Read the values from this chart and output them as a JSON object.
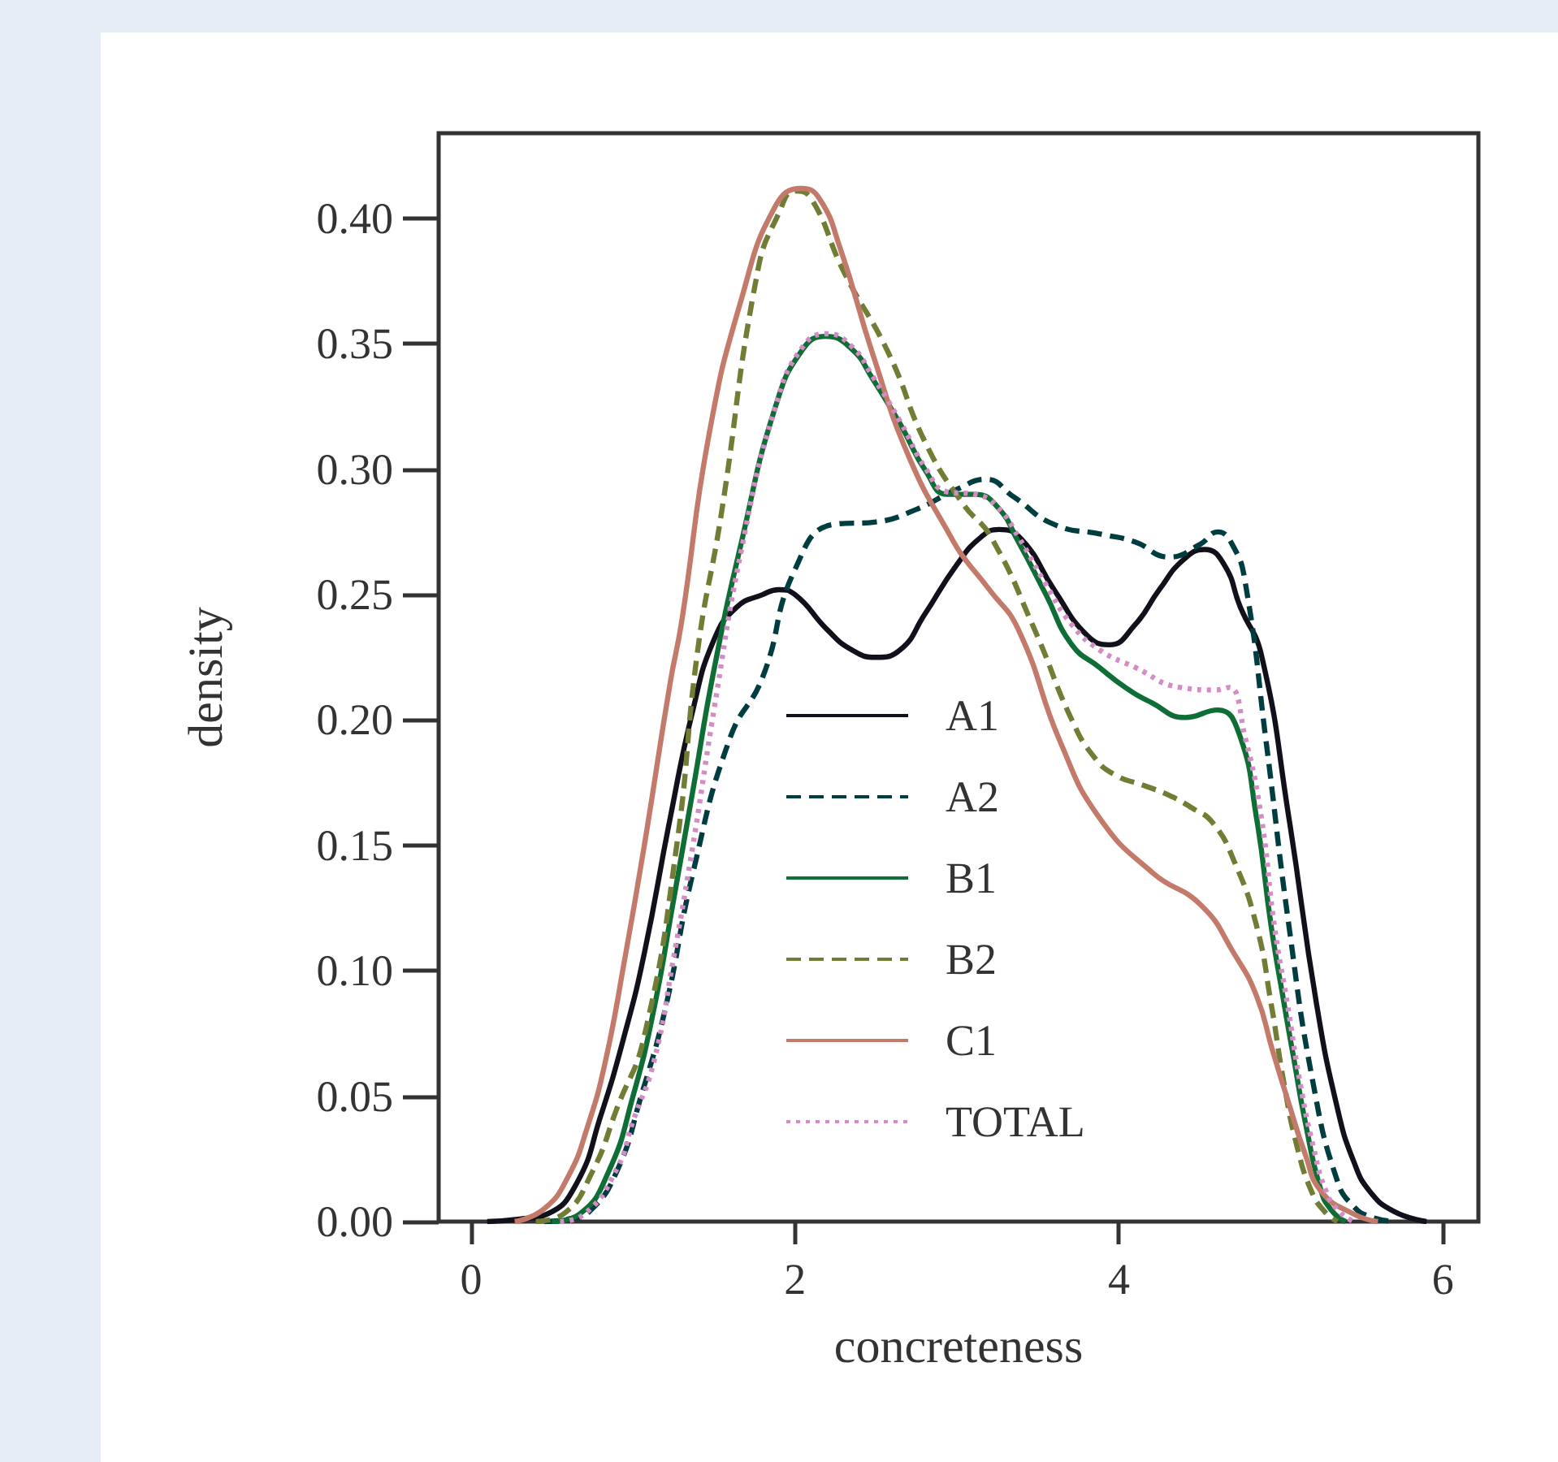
{
  "chart_data": {
    "type": "line",
    "xlabel": "concreteness",
    "ylabel": "density",
    "xlim": [
      -0.2,
      6.22
    ],
    "ylim": [
      0,
      0.434
    ],
    "xticks": [
      0,
      2,
      4,
      6
    ],
    "yticks": [
      {
        "value": 0,
        "label": "0.00"
      },
      {
        "value": 0.05,
        "label": "0.05"
      },
      {
        "value": 0.1,
        "label": "0.10"
      },
      {
        "value": 0.15,
        "label": "0.15"
      },
      {
        "value": 0.2,
        "label": "0.20"
      },
      {
        "value": 0.25,
        "label": "0.25"
      },
      {
        "value": 0.3,
        "label": "0.30"
      },
      {
        "value": 0.35,
        "label": "0.35"
      },
      {
        "value": 0.4,
        "label": "0.40"
      }
    ],
    "grid": false,
    "legend": "bottom",
    "marker": "none",
    "series": [
      {
        "name": "A1",
        "color": "#12101a",
        "line_style": "solid",
        "x": [
          0.1,
          0.3,
          0.47,
          0.65,
          0.8,
          0.95,
          1.07,
          1.23,
          1.37,
          1.5,
          1.64,
          1.8,
          1.9,
          2.0,
          2.2,
          2.35,
          2.5,
          2.65,
          2.8,
          3.0,
          3.15,
          3.26,
          3.4,
          3.6,
          3.8,
          3.94,
          4.1,
          4.25,
          4.4,
          4.53,
          4.65,
          4.75,
          4.88,
          5.05,
          5.22,
          5.35,
          5.45,
          5.55,
          5.7,
          5.9
        ],
        "values": [
          0,
          0.001,
          0.003,
          0.015,
          0.042,
          0.075,
          0.107,
          0.161,
          0.204,
          0.232,
          0.245,
          0.25,
          0.252,
          0.25,
          0.236,
          0.228,
          0.225,
          0.228,
          0.242,
          0.262,
          0.273,
          0.276,
          0.272,
          0.252,
          0.234,
          0.23,
          0.238,
          0.252,
          0.264,
          0.268,
          0.262,
          0.245,
          0.226,
          0.161,
          0.087,
          0.045,
          0.024,
          0.012,
          0.004,
          0
        ]
      },
      {
        "name": "A2",
        "color": "#003d40",
        "line_style": "dashed",
        "x": [
          0.45,
          0.6,
          0.73,
          0.9,
          1.05,
          1.2,
          1.37,
          1.6,
          1.8,
          2.0,
          2.24,
          2.5,
          2.75,
          3.0,
          3.18,
          3.35,
          3.6,
          3.9,
          4.1,
          4.31,
          4.5,
          4.61,
          4.7,
          4.78,
          4.91,
          5.05,
          5.2,
          5.35,
          5.45,
          5.55,
          5.7
        ],
        "values": [
          0,
          0.001,
          0.004,
          0.02,
          0.05,
          0.085,
          0.139,
          0.193,
          0.217,
          0.26,
          0.278,
          0.279,
          0.284,
          0.292,
          0.296,
          0.289,
          0.278,
          0.274,
          0.271,
          0.265,
          0.27,
          0.275,
          0.27,
          0.255,
          0.191,
          0.118,
          0.055,
          0.016,
          0.006,
          0.002,
          0
        ]
      },
      {
        "name": "B1",
        "color": "#0f6e35",
        "line_style": "solid",
        "x": [
          0.5,
          0.67,
          0.85,
          1.0,
          1.13,
          1.25,
          1.37,
          1.5,
          1.67,
          1.88,
          2.05,
          2.19,
          2.35,
          2.48,
          2.65,
          2.81,
          2.94,
          3.11,
          3.25,
          3.38,
          3.55,
          3.71,
          3.88,
          4.04,
          4.2,
          4.41,
          4.61,
          4.74,
          4.85,
          4.94,
          5.02,
          5.08,
          5.15,
          5.25,
          5.32,
          5.4
        ],
        "values": [
          0,
          0.003,
          0.02,
          0.05,
          0.085,
          0.128,
          0.172,
          0.22,
          0.271,
          0.325,
          0.348,
          0.353,
          0.348,
          0.336,
          0.318,
          0.299,
          0.29,
          0.29,
          0.285,
          0.271,
          0.25,
          0.23,
          0.221,
          0.213,
          0.207,
          0.201,
          0.204,
          0.195,
          0.161,
          0.118,
          0.087,
          0.065,
          0.04,
          0.012,
          0.004,
          0
        ]
      },
      {
        "name": "B2",
        "color": "#717d34",
        "line_style": "dashed",
        "x": [
          0.4,
          0.57,
          0.75,
          0.9,
          1.07,
          1.27,
          1.4,
          1.54,
          1.77,
          1.9,
          2.0,
          2.1,
          2.3,
          2.58,
          2.81,
          3.04,
          3.21,
          3.48,
          3.71,
          3.85,
          3.98,
          4.15,
          4.31,
          4.45,
          4.58,
          4.71,
          4.85,
          4.94,
          5.02,
          5.1,
          5.19,
          5.27,
          5.35
        ],
        "values": [
          0,
          0.003,
          0.02,
          0.045,
          0.074,
          0.15,
          0.228,
          0.28,
          0.379,
          0.402,
          0.411,
          0.408,
          0.379,
          0.346,
          0.31,
          0.286,
          0.273,
          0.236,
          0.2,
          0.185,
          0.178,
          0.174,
          0.17,
          0.165,
          0.159,
          0.144,
          0.118,
          0.087,
          0.055,
          0.03,
          0.012,
          0.004,
          0
        ]
      },
      {
        "name": "C1",
        "color": "#c47a6b",
        "line_style": "solid",
        "x": [
          0.27,
          0.45,
          0.6,
          0.72,
          0.83,
          0.95,
          1.07,
          1.23,
          1.3,
          1.47,
          1.67,
          1.88,
          2.04,
          2.15,
          2.28,
          2.48,
          2.71,
          2.98,
          3.04,
          3.2,
          3.38,
          3.64,
          3.88,
          4.21,
          4.51,
          4.71,
          4.85,
          4.95,
          5.05,
          5.15,
          5.25,
          5.45,
          5.6
        ],
        "values": [
          0,
          0.005,
          0.018,
          0.038,
          0.064,
          0.105,
          0.15,
          0.215,
          0.239,
          0.314,
          0.368,
          0.405,
          0.412,
          0.408,
          0.388,
          0.346,
          0.304,
          0.271,
          0.265,
          0.252,
          0.236,
          0.191,
          0.161,
          0.139,
          0.126,
          0.107,
          0.09,
          0.068,
          0.047,
          0.027,
          0.012,
          0.003,
          0
        ]
      },
      {
        "name": "TOTAL",
        "color": "#d48cc4",
        "line_style": "dotted",
        "x": [
          0.55,
          0.7,
          0.9,
          1.0,
          1.13,
          1.25,
          1.37,
          1.5,
          1.67,
          1.88,
          2.05,
          2.2,
          2.35,
          2.48,
          2.65,
          2.81,
          2.94,
          3.11,
          3.25,
          3.38,
          3.55,
          3.71,
          3.88,
          4.1,
          4.38,
          4.6,
          4.68,
          4.78,
          4.88,
          4.96,
          5.04,
          5.12,
          5.2,
          5.28,
          5.36,
          5.45
        ],
        "values": [
          0,
          0.003,
          0.021,
          0.04,
          0.064,
          0.105,
          0.15,
          0.204,
          0.268,
          0.325,
          0.349,
          0.354,
          0.349,
          0.337,
          0.319,
          0.3,
          0.291,
          0.29,
          0.285,
          0.273,
          0.254,
          0.238,
          0.228,
          0.221,
          0.213,
          0.212,
          0.213,
          0.193,
          0.161,
          0.118,
          0.087,
          0.055,
          0.03,
          0.012,
          0.004,
          0
        ]
      }
    ]
  }
}
